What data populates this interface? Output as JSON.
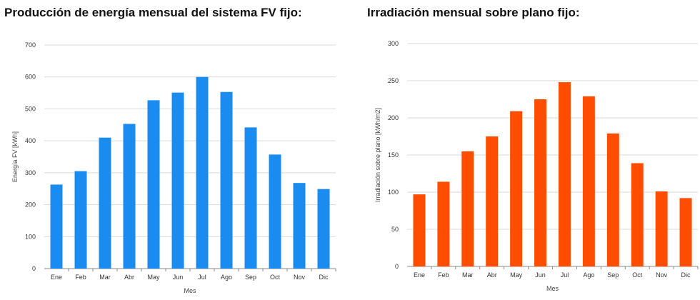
{
  "chart_data": [
    {
      "type": "bar",
      "title": "Producción de energía mensual del sistema FV fijo:",
      "xlabel": "Mes",
      "ylabel": "Energía FV [kWh]",
      "categories": [
        "Ene",
        "Feb",
        "Mar",
        "Abr",
        "May",
        "Jun",
        "Jul",
        "Ago",
        "Sep",
        "Oct",
        "Nov",
        "Dic"
      ],
      "values": [
        263,
        305,
        410,
        453,
        527,
        551,
        600,
        553,
        442,
        357,
        268,
        249
      ],
      "ylim": [
        0,
        700
      ],
      "yticks": [
        0,
        100,
        200,
        300,
        400,
        500,
        600,
        700
      ],
      "color": "#1a8cf0",
      "grid": true
    },
    {
      "type": "bar",
      "title": "Irradiación mensual sobre plano fijo:",
      "xlabel": "Mes",
      "ylabel": "Irradiación sobre plano [kWh/m2]",
      "categories": [
        "Ene",
        "Feb",
        "Mar",
        "Abr",
        "May",
        "Jun",
        "Jul",
        "Ago",
        "Sep",
        "Oct",
        "Nov",
        "Dic"
      ],
      "values": [
        97,
        114,
        155,
        175,
        209,
        225,
        248,
        229,
        179,
        139,
        101,
        92
      ],
      "ylim": [
        0,
        300
      ],
      "yticks": [
        0,
        50,
        100,
        150,
        200,
        250,
        300
      ],
      "color": "#ff4d00",
      "grid": true
    }
  ]
}
